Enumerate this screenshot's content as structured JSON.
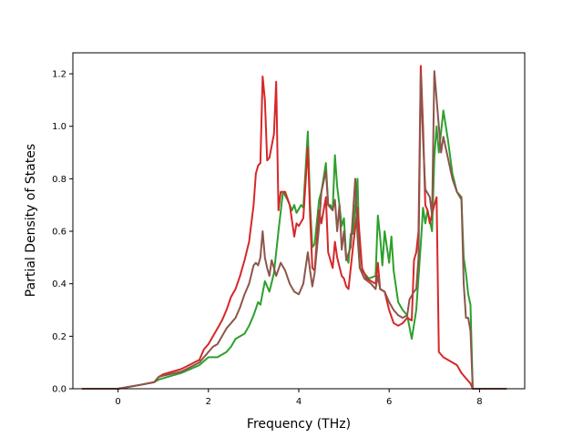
{
  "chart_data": {
    "type": "line",
    "xlabel": "Frequency (THz)",
    "ylabel": "Partial Density of States",
    "xlim": [
      -1.0,
      9.0
    ],
    "ylim": [
      0.0,
      1.28
    ],
    "xticks": [
      "0",
      "2",
      "4",
      "6",
      "8"
    ],
    "yticks": [
      "0.0",
      "0.2",
      "0.4",
      "0.6",
      "0.8",
      "1.0",
      "1.2"
    ],
    "grid": false,
    "series": [
      {
        "color": "#2ca02c",
        "points": [
          [
            -0.8,
            0
          ],
          [
            0,
            0
          ],
          [
            0.5,
            0.015
          ],
          [
            0.8,
            0.025
          ],
          [
            0.9,
            0.035
          ],
          [
            1.0,
            0.04
          ],
          [
            1.4,
            0.06
          ],
          [
            1.8,
            0.09
          ],
          [
            2.0,
            0.12
          ],
          [
            2.2,
            0.12
          ],
          [
            2.4,
            0.14
          ],
          [
            2.5,
            0.16
          ],
          [
            2.6,
            0.19
          ],
          [
            2.8,
            0.21
          ],
          [
            2.9,
            0.24
          ],
          [
            3.0,
            0.28
          ],
          [
            3.1,
            0.33
          ],
          [
            3.15,
            0.32
          ],
          [
            3.25,
            0.41
          ],
          [
            3.35,
            0.37
          ],
          [
            3.45,
            0.44
          ],
          [
            3.55,
            0.6
          ],
          [
            3.65,
            0.75
          ],
          [
            3.75,
            0.72
          ],
          [
            3.85,
            0.68
          ],
          [
            3.9,
            0.7
          ],
          [
            3.95,
            0.67
          ],
          [
            4.05,
            0.7
          ],
          [
            4.1,
            0.69
          ],
          [
            4.2,
            0.98
          ],
          [
            4.25,
            0.7
          ],
          [
            4.3,
            0.54
          ],
          [
            4.35,
            0.55
          ],
          [
            4.45,
            0.72
          ],
          [
            4.5,
            0.75
          ],
          [
            4.6,
            0.86
          ],
          [
            4.65,
            0.7
          ],
          [
            4.7,
            0.7
          ],
          [
            4.75,
            0.68
          ],
          [
            4.8,
            0.89
          ],
          [
            4.85,
            0.77
          ],
          [
            4.9,
            0.7
          ],
          [
            4.95,
            0.62
          ],
          [
            5.0,
            0.65
          ],
          [
            5.05,
            0.5
          ],
          [
            5.1,
            0.48
          ],
          [
            5.15,
            0.59
          ],
          [
            5.2,
            0.59
          ],
          [
            5.3,
            0.8
          ],
          [
            5.35,
            0.46
          ],
          [
            5.45,
            0.44
          ],
          [
            5.55,
            0.42
          ],
          [
            5.7,
            0.43
          ],
          [
            5.75,
            0.66
          ],
          [
            5.8,
            0.58
          ],
          [
            5.85,
            0.47
          ],
          [
            5.9,
            0.6
          ],
          [
            6.0,
            0.48
          ],
          [
            6.05,
            0.58
          ],
          [
            6.1,
            0.45
          ],
          [
            6.2,
            0.33
          ],
          [
            6.3,
            0.3
          ],
          [
            6.4,
            0.28
          ],
          [
            6.5,
            0.19
          ],
          [
            6.6,
            0.3
          ],
          [
            6.7,
            0.55
          ],
          [
            6.75,
            0.69
          ],
          [
            6.8,
            0.63
          ],
          [
            6.85,
            0.68
          ],
          [
            6.95,
            0.6
          ],
          [
            7.0,
            0.88
          ],
          [
            7.05,
            1.0
          ],
          [
            7.1,
            0.9
          ],
          [
            7.2,
            1.06
          ],
          [
            7.3,
            0.95
          ],
          [
            7.4,
            0.82
          ],
          [
            7.5,
            0.75
          ],
          [
            7.6,
            0.72
          ],
          [
            7.65,
            0.5
          ],
          [
            7.7,
            0.44
          ],
          [
            7.75,
            0.36
          ],
          [
            7.8,
            0.32
          ],
          [
            7.85,
            0.0
          ],
          [
            8.6,
            0
          ]
        ]
      },
      {
        "color": "#d62728",
        "points": [
          [
            -0.8,
            0
          ],
          [
            0,
            0
          ],
          [
            0.5,
            0.015
          ],
          [
            0.8,
            0.025
          ],
          [
            0.9,
            0.045
          ],
          [
            1.0,
            0.055
          ],
          [
            1.4,
            0.075
          ],
          [
            1.8,
            0.11
          ],
          [
            1.9,
            0.15
          ],
          [
            2.0,
            0.17
          ],
          [
            2.1,
            0.2
          ],
          [
            2.2,
            0.23
          ],
          [
            2.3,
            0.26
          ],
          [
            2.4,
            0.3
          ],
          [
            2.5,
            0.35
          ],
          [
            2.6,
            0.38
          ],
          [
            2.7,
            0.43
          ],
          [
            2.8,
            0.49
          ],
          [
            2.9,
            0.56
          ],
          [
            3.0,
            0.7
          ],
          [
            3.05,
            0.82
          ],
          [
            3.1,
            0.85
          ],
          [
            3.15,
            0.86
          ],
          [
            3.2,
            1.19
          ],
          [
            3.25,
            1.1
          ],
          [
            3.3,
            0.87
          ],
          [
            3.35,
            0.88
          ],
          [
            3.45,
            0.97
          ],
          [
            3.5,
            1.17
          ],
          [
            3.55,
            0.68
          ],
          [
            3.6,
            0.75
          ],
          [
            3.7,
            0.75
          ],
          [
            3.8,
            0.7
          ],
          [
            3.9,
            0.58
          ],
          [
            3.95,
            0.63
          ],
          [
            4.0,
            0.62
          ],
          [
            4.1,
            0.65
          ],
          [
            4.2,
            0.92
          ],
          [
            4.25,
            0.66
          ],
          [
            4.3,
            0.46
          ],
          [
            4.35,
            0.45
          ],
          [
            4.45,
            0.68
          ],
          [
            4.5,
            0.63
          ],
          [
            4.6,
            0.73
          ],
          [
            4.65,
            0.52
          ],
          [
            4.75,
            0.46
          ],
          [
            4.8,
            0.56
          ],
          [
            4.85,
            0.5
          ],
          [
            4.95,
            0.43
          ],
          [
            5.0,
            0.42
          ],
          [
            5.05,
            0.39
          ],
          [
            5.1,
            0.38
          ],
          [
            5.15,
            0.46
          ],
          [
            5.2,
            0.54
          ],
          [
            5.3,
            0.69
          ],
          [
            5.4,
            0.46
          ],
          [
            5.5,
            0.42
          ],
          [
            5.6,
            0.41
          ],
          [
            5.7,
            0.4
          ],
          [
            5.75,
            0.48
          ],
          [
            5.8,
            0.38
          ],
          [
            5.9,
            0.37
          ],
          [
            6.0,
            0.3
          ],
          [
            6.1,
            0.25
          ],
          [
            6.2,
            0.24
          ],
          [
            6.3,
            0.25
          ],
          [
            6.4,
            0.27
          ],
          [
            6.5,
            0.26
          ],
          [
            6.55,
            0.49
          ],
          [
            6.6,
            0.52
          ],
          [
            6.65,
            0.6
          ],
          [
            6.7,
            1.23
          ],
          [
            6.75,
            1.0
          ],
          [
            6.8,
            0.7
          ],
          [
            6.85,
            0.68
          ],
          [
            6.9,
            0.63
          ],
          [
            7.0,
            0.7
          ],
          [
            7.05,
            0.73
          ],
          [
            7.1,
            0.14
          ],
          [
            7.2,
            0.12
          ],
          [
            7.3,
            0.11
          ],
          [
            7.4,
            0.1
          ],
          [
            7.5,
            0.09
          ],
          [
            7.6,
            0.06
          ],
          [
            7.7,
            0.04
          ],
          [
            7.8,
            0.02
          ],
          [
            7.85,
            0.0
          ],
          [
            8.6,
            0
          ]
        ]
      },
      {
        "color": "#8c564b",
        "points": [
          [
            -0.8,
            0
          ],
          [
            0,
            0
          ],
          [
            0.5,
            0.015
          ],
          [
            0.8,
            0.025
          ],
          [
            0.9,
            0.045
          ],
          [
            1.0,
            0.05
          ],
          [
            1.4,
            0.065
          ],
          [
            1.8,
            0.1
          ],
          [
            1.9,
            0.12
          ],
          [
            2.0,
            0.14
          ],
          [
            2.1,
            0.16
          ],
          [
            2.2,
            0.17
          ],
          [
            2.3,
            0.2
          ],
          [
            2.4,
            0.23
          ],
          [
            2.5,
            0.25
          ],
          [
            2.6,
            0.27
          ],
          [
            2.7,
            0.31
          ],
          [
            2.8,
            0.36
          ],
          [
            2.9,
            0.4
          ],
          [
            3.0,
            0.47
          ],
          [
            3.05,
            0.48
          ],
          [
            3.1,
            0.47
          ],
          [
            3.15,
            0.5
          ],
          [
            3.2,
            0.6
          ],
          [
            3.25,
            0.5
          ],
          [
            3.3,
            0.46
          ],
          [
            3.35,
            0.43
          ],
          [
            3.4,
            0.49
          ],
          [
            3.5,
            0.43
          ],
          [
            3.6,
            0.48
          ],
          [
            3.7,
            0.45
          ],
          [
            3.8,
            0.4
          ],
          [
            3.9,
            0.37
          ],
          [
            4.0,
            0.36
          ],
          [
            4.1,
            0.4
          ],
          [
            4.2,
            0.52
          ],
          [
            4.25,
            0.45
          ],
          [
            4.3,
            0.39
          ],
          [
            4.35,
            0.44
          ],
          [
            4.45,
            0.62
          ],
          [
            4.5,
            0.75
          ],
          [
            4.6,
            0.83
          ],
          [
            4.65,
            0.7
          ],
          [
            4.75,
            0.68
          ],
          [
            4.8,
            0.72
          ],
          [
            4.85,
            0.6
          ],
          [
            4.9,
            0.7
          ],
          [
            4.95,
            0.53
          ],
          [
            5.0,
            0.6
          ],
          [
            5.05,
            0.49
          ],
          [
            5.15,
            0.54
          ],
          [
            5.25,
            0.8
          ],
          [
            5.3,
            0.58
          ],
          [
            5.35,
            0.46
          ],
          [
            5.45,
            0.42
          ],
          [
            5.6,
            0.4
          ],
          [
            5.7,
            0.38
          ],
          [
            5.75,
            0.43
          ],
          [
            5.8,
            0.38
          ],
          [
            5.9,
            0.37
          ],
          [
            6.0,
            0.33
          ],
          [
            6.1,
            0.3
          ],
          [
            6.2,
            0.28
          ],
          [
            6.3,
            0.27
          ],
          [
            6.4,
            0.28
          ],
          [
            6.45,
            0.34
          ],
          [
            6.55,
            0.37
          ],
          [
            6.6,
            0.38
          ],
          [
            6.65,
            0.5
          ],
          [
            6.7,
            1.2
          ],
          [
            6.75,
            0.95
          ],
          [
            6.8,
            0.76
          ],
          [
            6.9,
            0.73
          ],
          [
            6.95,
            0.66
          ],
          [
            7.0,
            1.21
          ],
          [
            7.1,
            1.0
          ],
          [
            7.15,
            0.9
          ],
          [
            7.2,
            0.96
          ],
          [
            7.3,
            0.88
          ],
          [
            7.4,
            0.8
          ],
          [
            7.5,
            0.75
          ],
          [
            7.6,
            0.73
          ],
          [
            7.65,
            0.4
          ],
          [
            7.7,
            0.27
          ],
          [
            7.75,
            0.27
          ],
          [
            7.8,
            0.22
          ],
          [
            7.85,
            0.0
          ],
          [
            8.6,
            0
          ]
        ]
      }
    ]
  }
}
